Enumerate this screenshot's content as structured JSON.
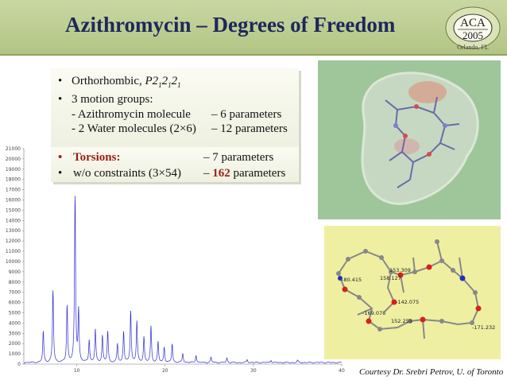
{
  "slide": {
    "title": "Azithromycin – Degrees of Freedom",
    "logo": {
      "name": "American Crystallographic Association",
      "abbr": "ACA",
      "year": "2005",
      "city": "Orlando, FL"
    },
    "bullets": {
      "b1_prefix": "Orthorhombic, ",
      "b1_group": "P2",
      "b1_sub1": "1",
      "b1_mid1": "2",
      "b1_sub2": "1",
      "b1_mid2": "2",
      "b1_sub3": "1",
      "b2": "3 motion groups:",
      "b2a": "- Azithromycin molecule",
      "b2a_param": "– 6 parameters",
      "b2b": "- 2 Water molecules (2×6)",
      "b2b_param": "– 12 parameters",
      "b3_label": "Torsions:",
      "b3_param": "– 7 parameters",
      "b4": "w/o constraints (3×54)",
      "b4_param_dash": "– ",
      "b4_param_num": "162",
      "b4_param_unit": " parameters"
    },
    "credit": "Courtesy Dr. Srebri Petrov, U. of Toronto",
    "torsion_labels": [
      "153.309",
      "-80.415",
      "158.127",
      "-142.075",
      "-169.078",
      "152.259",
      "-171.232"
    ]
  },
  "colors": {
    "header": "#b3c585",
    "title": "#20275c",
    "highlight": "#9b1d17",
    "surface": "#9fc69a",
    "panel": "#efefa2",
    "trace": "#2b2bd6"
  },
  "chart_data": {
    "type": "line",
    "title": "",
    "xlabel": "",
    "ylabel": "",
    "xlim": [
      4,
      40
    ],
    "ylim": [
      0,
      21000
    ],
    "x_ticks": [
      "10",
      "20",
      "30",
      "40"
    ],
    "y_ticks": [
      "0",
      "1000",
      "2000",
      "3000",
      "4000",
      "5000",
      "6000",
      "7000",
      "8000",
      "9000",
      "10000",
      "11000",
      "12000",
      "13000",
      "14000",
      "15000",
      "16000",
      "17000",
      "18000",
      "19000",
      "20000",
      "21000"
    ],
    "peaks": [
      {
        "x": 6.2,
        "y": 3000
      },
      {
        "x": 7.3,
        "y": 7000
      },
      {
        "x": 8.9,
        "y": 5500
      },
      {
        "x": 9.8,
        "y": 16000
      },
      {
        "x": 10.2,
        "y": 5000
      },
      {
        "x": 11.4,
        "y": 2200
      },
      {
        "x": 12.1,
        "y": 3200
      },
      {
        "x": 12.9,
        "y": 2600
      },
      {
        "x": 13.5,
        "y": 3000
      },
      {
        "x": 14.6,
        "y": 1800
      },
      {
        "x": 15.3,
        "y": 3000
      },
      {
        "x": 16.1,
        "y": 5000
      },
      {
        "x": 16.8,
        "y": 4000
      },
      {
        "x": 17.6,
        "y": 2500
      },
      {
        "x": 18.4,
        "y": 3500
      },
      {
        "x": 19.2,
        "y": 2000
      },
      {
        "x": 19.9,
        "y": 1500
      },
      {
        "x": 20.8,
        "y": 1800
      },
      {
        "x": 22.0,
        "y": 900
      },
      {
        "x": 23.5,
        "y": 700
      },
      {
        "x": 25.2,
        "y": 500
      },
      {
        "x": 27.0,
        "y": 450
      },
      {
        "x": 29.3,
        "y": 300
      },
      {
        "x": 32.0,
        "y": 250
      },
      {
        "x": 35.0,
        "y": 200
      }
    ]
  }
}
